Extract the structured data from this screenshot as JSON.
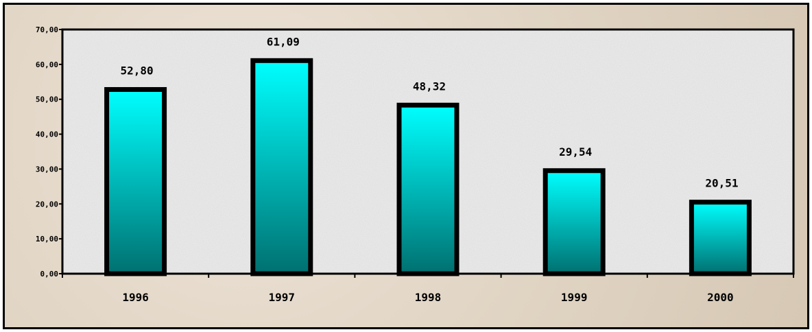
{
  "chart_data": {
    "type": "bar",
    "title": "",
    "xlabel": "",
    "ylabel": "",
    "categories": [
      "1996",
      "1997",
      "1998",
      "1999",
      "2000"
    ],
    "values": [
      52.8,
      61.09,
      48.32,
      29.54,
      20.51
    ],
    "value_labels": [
      "52,80",
      "61,09",
      "48,32",
      "29,54",
      "20,51"
    ],
    "yticks": [
      "0,00",
      "10,00",
      "20,00",
      "30,00",
      "40,00",
      "50,00",
      "60,00",
      "70,00"
    ],
    "ylim": [
      0,
      70
    ],
    "grid": false,
    "legend": "none",
    "colors": {
      "bar_top": "#00ffff",
      "bar_bottom": "#007070",
      "bar_border": "#000000",
      "plot_background": "#ececec"
    }
  }
}
